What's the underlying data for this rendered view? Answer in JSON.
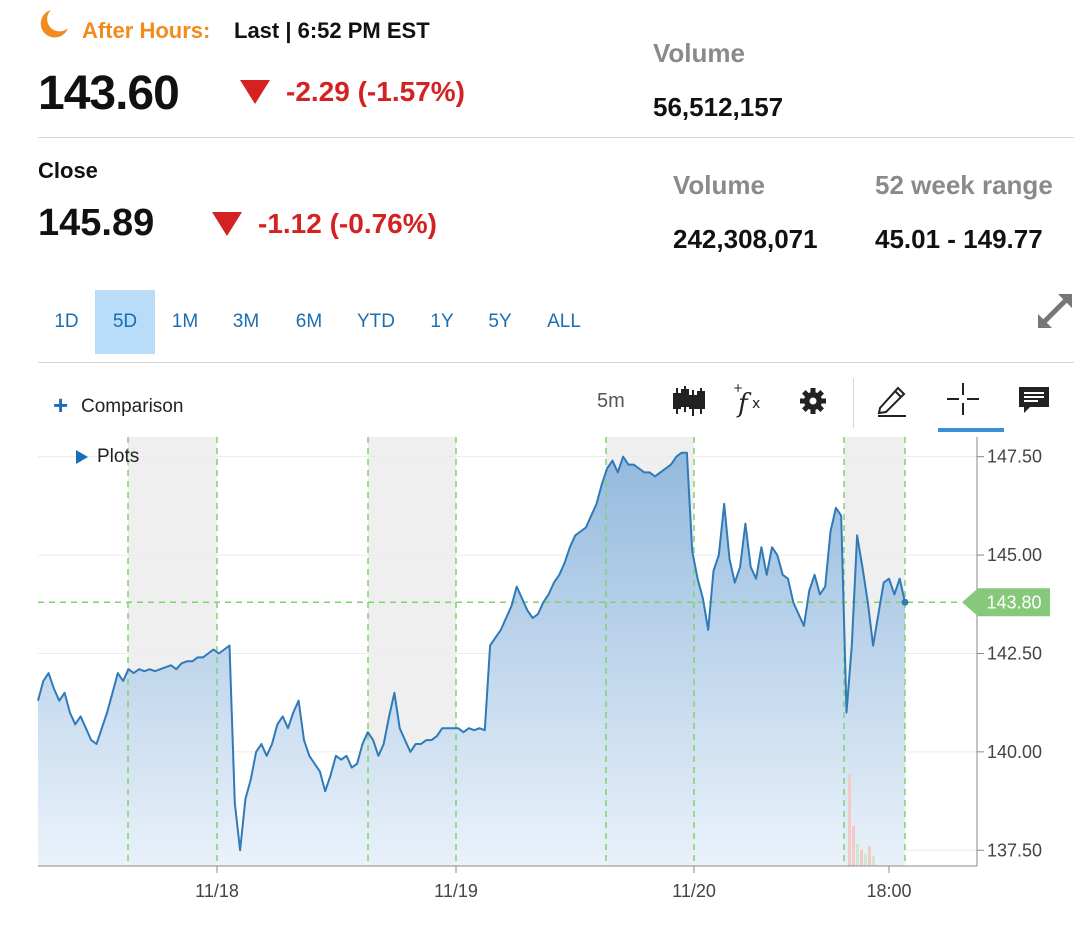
{
  "after_hours": {
    "label": "After Hours:",
    "last": "Last | 6:52 PM EST",
    "price": "143.60",
    "change": "-2.29 (-1.57%)",
    "volume_label": "Volume",
    "volume": "56,512,157"
  },
  "close": {
    "label": "Close",
    "price": "145.89",
    "change": "-1.12 (-0.76%)",
    "volume_label": "Volume",
    "volume": "242,308,071",
    "range_label": "52 week range",
    "range": "45.01 - 149.77"
  },
  "ranges": [
    "1D",
    "5D",
    "1M",
    "3M",
    "6M",
    "YTD",
    "1Y",
    "5Y",
    "ALL"
  ],
  "active_range": "5D",
  "toolbar": {
    "comparison_label": "Comparison",
    "interval": "5m",
    "plots_label": "Plots",
    "icons": [
      "candlestick-icon",
      "studies-fx-icon",
      "gear-icon",
      "pencil-draw-icon",
      "crosshair-icon",
      "comment-icon",
      "expand-icon"
    ]
  },
  "colors": {
    "accent_orange": "#f28b1f",
    "down_red": "#d42222",
    "tab_active": "#b9dcf8",
    "link_blue": "#1a6fb4",
    "line_blue": "#2f7ab8",
    "session_green": "#7dd46e",
    "badge_green": "#86c97a"
  },
  "chart_data": {
    "type": "area",
    "x_tick_labels": [
      "11/18",
      "11/19",
      "11/20",
      "18:00"
    ],
    "y_tick_labels": [
      "147.50",
      "145.00",
      "142.50",
      "140.00",
      "137.50"
    ],
    "ylim": [
      137.1,
      148.0
    ],
    "last_value": 143.8,
    "last_value_label": "143.80",
    "series": [
      {
        "values": [
          141.3,
          141.8,
          142.0,
          141.6,
          141.3,
          141.5,
          141.0,
          140.7,
          140.9,
          140.6,
          140.3,
          140.2,
          140.6,
          141.0,
          141.5,
          142.0,
          141.8,
          142.1,
          142.0,
          142.1,
          142.05,
          142.1,
          142.05,
          142.1,
          142.15,
          142.2,
          142.1,
          142.25,
          142.3,
          142.3,
          142.4,
          142.4,
          142.5,
          142.6,
          142.5,
          142.6,
          142.7,
          138.7,
          137.5,
          138.8,
          139.3,
          140.0,
          140.2,
          139.9,
          140.2,
          140.7,
          140.9,
          140.6,
          141.0,
          141.3,
          140.3,
          139.9,
          139.7,
          139.5,
          139.0,
          139.4,
          139.9,
          139.8,
          139.9,
          139.6,
          139.7,
          140.2,
          140.5,
          140.3,
          139.9,
          140.2,
          140.9,
          141.5,
          140.6,
          140.3,
          140.0,
          140.2,
          140.2,
          140.3,
          140.3,
          140.4,
          140.6,
          140.6,
          140.6,
          140.6,
          140.5,
          140.6,
          140.55,
          140.6,
          140.55,
          142.7,
          142.9,
          143.1,
          143.4,
          143.7,
          144.2,
          143.9,
          143.6,
          143.4,
          143.5,
          143.8,
          144.0,
          144.3,
          144.5,
          144.8,
          145.2,
          145.5,
          145.6,
          145.7,
          146.0,
          146.3,
          146.8,
          147.2,
          147.4,
          147.1,
          147.5,
          147.3,
          147.3,
          147.2,
          147.1,
          147.1,
          147.0,
          147.1,
          147.2,
          147.3,
          147.5,
          147.6,
          147.6,
          145.1,
          144.4,
          143.9,
          143.1,
          144.6,
          145.0,
          146.3,
          144.9,
          144.3,
          144.7,
          145.8,
          144.7,
          144.4,
          145.2,
          144.5,
          145.2,
          145.0,
          144.5,
          144.4,
          143.8,
          143.5,
          143.2,
          144.1,
          144.5,
          144.0,
          144.2,
          145.6,
          146.2,
          146.0,
          141.0,
          142.7,
          145.5,
          144.7,
          143.8,
          142.7,
          143.5,
          144.3,
          144.4,
          144.0,
          144.4,
          143.8
        ]
      }
    ]
  }
}
